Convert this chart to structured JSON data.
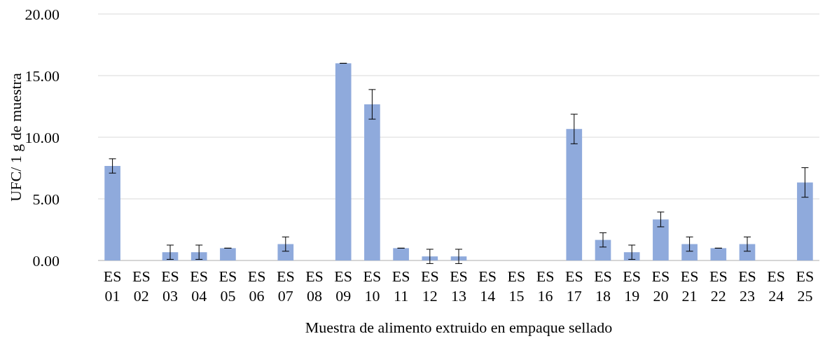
{
  "chart_data": {
    "type": "bar",
    "xlabel": "Muestra de alimento extruido en empaque sellado",
    "ylabel": "UFC/ 1 g de muestra",
    "categories": [
      "ES 01",
      "ES 02",
      "ES 03",
      "ES 04",
      "ES 05",
      "ES 06",
      "ES 07",
      "ES 08",
      "ES 09",
      "ES 10",
      "ES 11",
      "ES 12",
      "ES 13",
      "ES 14",
      "ES 15",
      "ES 16",
      "ES 17",
      "ES 18",
      "ES 19",
      "ES 20",
      "ES 21",
      "ES 22",
      "ES 23",
      "ES 24",
      "ES 25"
    ],
    "values": [
      7.67,
      0,
      0.67,
      0.67,
      1,
      0,
      1.33,
      0,
      16,
      12.67,
      1,
      0.33,
      0.33,
      0,
      0,
      0,
      10.67,
      1.67,
      0.67,
      3.33,
      1.33,
      1,
      1.33,
      0,
      6.33
    ],
    "errors": [
      0.58,
      null,
      0.58,
      0.58,
      0,
      null,
      0.58,
      null,
      0,
      1.2,
      0,
      0.58,
      0.58,
      null,
      null,
      null,
      1.2,
      0.58,
      0.58,
      0.6,
      0.58,
      0,
      0.58,
      null,
      1.2
    ],
    "color": "#8faadc",
    "ylim": [
      0,
      20
    ],
    "yticks": [
      {
        "value": 0,
        "label": "0.00"
      },
      {
        "value": 5,
        "label": "5.00"
      },
      {
        "value": 10,
        "label": "10.00"
      },
      {
        "value": 15,
        "label": "15.00"
      },
      {
        "value": 20,
        "label": "20.00"
      }
    ],
    "grid": "y"
  }
}
